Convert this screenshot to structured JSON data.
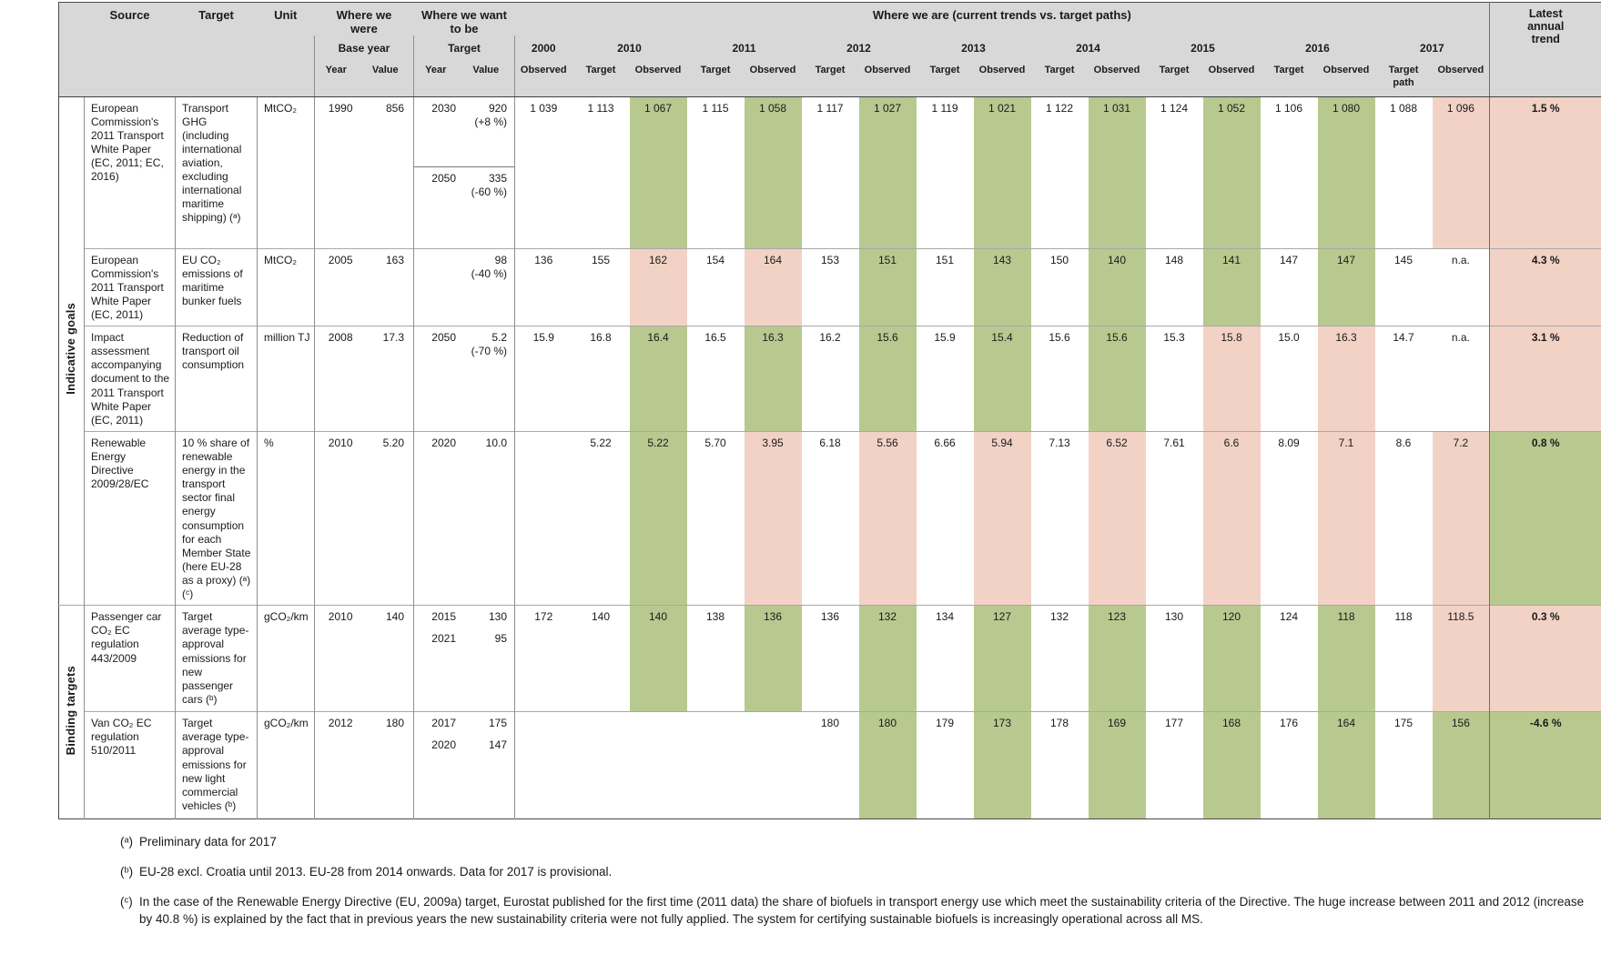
{
  "header": {
    "source": "Source",
    "target": "Target",
    "unit": "Unit",
    "where_we_were": "Where we were",
    "where_we_want": "Where we want to be",
    "where_we_are": "Where we are (current trends vs. target paths)",
    "latest_trend": "Latest annual trend",
    "base_year": "Base year",
    "target_group": "Target",
    "year": "Year",
    "value": "Value",
    "observed": "Observed",
    "target_col": "Target",
    "target_path": "Target path",
    "years": [
      "2000",
      "2010",
      "2011",
      "2012",
      "2013",
      "2014",
      "2015",
      "2016",
      "2017"
    ]
  },
  "colors": {
    "green": "#b7c98f",
    "pink": "#f2d2c5",
    "header_bg": "#d8d8d8"
  },
  "groups": [
    {
      "label": "Indicative goals"
    },
    {
      "label": "Binding targets"
    }
  ],
  "rows": [
    {
      "source": "European Commission's 2011 Transport White Paper (EC, 2011; EC, 2016)",
      "target": "Transport GHG (including international aviation, excluding international maritime shipping) (ᵃ)",
      "unit": "MtCO₂",
      "base": {
        "year": "1990",
        "value": "856"
      },
      "split": true,
      "goal": [
        {
          "year": "2030",
          "value": "920",
          "note": "(+8 %)"
        },
        {
          "year": "2050",
          "value": "335",
          "note": "(-60 %)"
        }
      ],
      "cells": [
        {
          "v": "1 039"
        },
        {
          "v": "1 113"
        },
        {
          "v": "1 067",
          "c": "g"
        },
        {
          "v": "1 115"
        },
        {
          "v": "1 058",
          "c": "g"
        },
        {
          "v": "1 117"
        },
        {
          "v": "1 027",
          "c": "g"
        },
        {
          "v": "1 119"
        },
        {
          "v": "1 021",
          "c": "g"
        },
        {
          "v": "1 122"
        },
        {
          "v": "1 031",
          "c": "g"
        },
        {
          "v": "1 124"
        },
        {
          "v": "1 052",
          "c": "g"
        },
        {
          "v": "1 106"
        },
        {
          "v": "1 080",
          "c": "g"
        },
        {
          "v": "1 088"
        },
        {
          "v": "1 096",
          "c": "p"
        }
      ],
      "trend": {
        "v": "1.5 %",
        "c": "p"
      }
    },
    {
      "source": "European Commission's 2011 Transport White Paper (EC, 2011)",
      "target": "EU CO₂ emissions of maritime bunker fuels",
      "unit": "MtCO₂",
      "base": {
        "year": "2005",
        "value": "163"
      },
      "split": false,
      "goal": [
        {
          "year": "",
          "value": "98",
          "note": "(-40 %)"
        }
      ],
      "cells": [
        {
          "v": "136"
        },
        {
          "v": "155"
        },
        {
          "v": "162",
          "c": "p"
        },
        {
          "v": "154"
        },
        {
          "v": "164",
          "c": "p"
        },
        {
          "v": "153"
        },
        {
          "v": "151",
          "c": "g"
        },
        {
          "v": "151"
        },
        {
          "v": "143",
          "c": "g"
        },
        {
          "v": "150"
        },
        {
          "v": "140",
          "c": "g"
        },
        {
          "v": "148"
        },
        {
          "v": "141",
          "c": "g"
        },
        {
          "v": "147"
        },
        {
          "v": "147",
          "c": "g"
        },
        {
          "v": "145"
        },
        {
          "v": "n.a."
        }
      ],
      "trend": {
        "v": "4.3 %",
        "c": "p"
      }
    },
    {
      "source": "Impact assessment accompanying document to the 2011 Transport White Paper (EC, 2011)",
      "target": "Reduction of transport oil consumption",
      "unit": "million TJ",
      "base": {
        "year": "2008",
        "value": "17.3"
      },
      "split": false,
      "goal": [
        {
          "year": "2050",
          "value": "5.2",
          "note": "(-70 %)"
        }
      ],
      "cells": [
        {
          "v": "15.9"
        },
        {
          "v": "16.8"
        },
        {
          "v": "16.4",
          "c": "g"
        },
        {
          "v": "16.5"
        },
        {
          "v": "16.3",
          "c": "g"
        },
        {
          "v": "16.2"
        },
        {
          "v": "15.6",
          "c": "g"
        },
        {
          "v": "15.9"
        },
        {
          "v": "15.4",
          "c": "g"
        },
        {
          "v": "15.6"
        },
        {
          "v": "15.6",
          "c": "g"
        },
        {
          "v": "15.3"
        },
        {
          "v": "15.8",
          "c": "p"
        },
        {
          "v": "15.0"
        },
        {
          "v": "16.3",
          "c": "p"
        },
        {
          "v": "14.7"
        },
        {
          "v": "n.a."
        }
      ],
      "trend": {
        "v": "3.1 %",
        "c": "p"
      }
    },
    {
      "source": "Renewable Energy Directive 2009/28/EC",
      "target": "10 % share of renewable energy in the transport sector final energy consumption for each Member State (here EU-28 as a proxy) (ᵃ) (ᶜ)",
      "unit": "%",
      "base": {
        "year": "2010",
        "value": "5.20"
      },
      "split": false,
      "goal": [
        {
          "year": "2020",
          "value": "10.0",
          "note": ""
        }
      ],
      "cells": [
        {
          "v": ""
        },
        {
          "v": "5.22"
        },
        {
          "v": "5.22",
          "c": "g"
        },
        {
          "v": "5.70"
        },
        {
          "v": "3.95",
          "c": "p"
        },
        {
          "v": "6.18"
        },
        {
          "v": "5.56",
          "c": "p"
        },
        {
          "v": "6.66"
        },
        {
          "v": "5.94",
          "c": "p"
        },
        {
          "v": "7.13"
        },
        {
          "v": "6.52",
          "c": "p"
        },
        {
          "v": "7.61"
        },
        {
          "v": "6.6",
          "c": "p"
        },
        {
          "v": "8.09"
        },
        {
          "v": "7.1",
          "c": "p"
        },
        {
          "v": "8.6"
        },
        {
          "v": "7.2",
          "c": "p"
        }
      ],
      "trend": {
        "v": "0.8 %",
        "c": "g"
      }
    },
    {
      "source": "Passenger car CO₂ EC regulation 443/2009",
      "target": "Target average type-approval emissions for new passenger cars (ᵇ)",
      "unit": "gCO₂/km",
      "base": {
        "year": "2010",
        "value": "140"
      },
      "split": false,
      "goal": [
        {
          "year": "2015",
          "value": "130",
          "note": ""
        },
        {
          "year": "2021",
          "value": "95",
          "note": ""
        }
      ],
      "cells": [
        {
          "v": "172"
        },
        {
          "v": "140"
        },
        {
          "v": "140",
          "c": "g"
        },
        {
          "v": "138"
        },
        {
          "v": "136",
          "c": "g"
        },
        {
          "v": "136"
        },
        {
          "v": "132",
          "c": "g"
        },
        {
          "v": "134"
        },
        {
          "v": "127",
          "c": "g"
        },
        {
          "v": "132"
        },
        {
          "v": "123",
          "c": "g"
        },
        {
          "v": "130"
        },
        {
          "v": "120",
          "c": "g"
        },
        {
          "v": "124"
        },
        {
          "v": "118",
          "c": "g"
        },
        {
          "v": "118"
        },
        {
          "v": "118.5",
          "c": "p"
        }
      ],
      "trend": {
        "v": "0.3 %",
        "c": "p"
      }
    },
    {
      "source": "Van CO₂ EC regulation 510/2011",
      "target": "Target average type-approval emissions for new light commercial vehicles (ᵇ)",
      "unit": "gCO₂/km",
      "base": {
        "year": "2012",
        "value": "180"
      },
      "split": false,
      "goal": [
        {
          "year": "2017",
          "value": "175",
          "note": ""
        },
        {
          "year": "2020",
          "value": "147",
          "note": ""
        }
      ],
      "cells": [
        {
          "v": ""
        },
        {
          "v": ""
        },
        {
          "v": ""
        },
        {
          "v": ""
        },
        {
          "v": ""
        },
        {
          "v": "180"
        },
        {
          "v": "180",
          "c": "g"
        },
        {
          "v": "179"
        },
        {
          "v": "173",
          "c": "g"
        },
        {
          "v": "178"
        },
        {
          "v": "169",
          "c": "g"
        },
        {
          "v": "177"
        },
        {
          "v": "168",
          "c": "g"
        },
        {
          "v": "176"
        },
        {
          "v": "164",
          "c": "g"
        },
        {
          "v": "175"
        },
        {
          "v": "156",
          "c": "g"
        }
      ],
      "trend": {
        "v": "-4.6 %",
        "c": "g"
      }
    }
  ],
  "footnotes": [
    {
      "marker": "(ᵃ)",
      "text": "Preliminary data for 2017"
    },
    {
      "marker": "(ᵇ)",
      "text": "EU-28 excl. Croatia until 2013. EU-28 from 2014 onwards. Data for 2017 is provisional."
    },
    {
      "marker": "(ᶜ)",
      "text": "In the case of the Renewable Energy Directive (EU, 2009a) target, Eurostat published for the first time (2011 data) the share of biofuels in transport energy use which meet the sustainability criteria of the Directive. The huge increase between 2011 and 2012 (increase by 40.8 %) is explained by the fact that in previous years the new sustainability criteria were not fully applied. The system for certifying sustainable biofuels is increasingly operational across all MS."
    }
  ]
}
